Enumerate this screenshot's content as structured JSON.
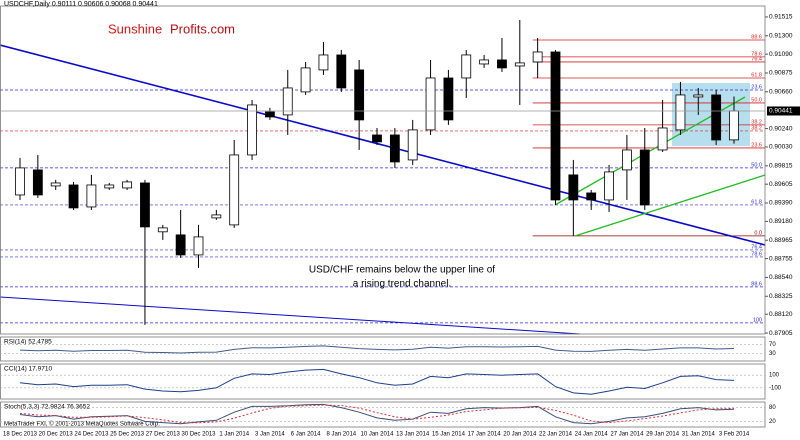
{
  "chart_data": [
    {
      "type": "candlestick",
      "header": "USDCHF,Daily  0.90111 0.90606 0.90068 0.90441",
      "logo": [
        "Sunshine",
        "Profits.com"
      ],
      "annotation": [
        "USD/CHF remains below the upper line of",
        "a rising trend channel."
      ],
      "categories": [
        "18 Dec 2013",
        null,
        "20 Dec 2013",
        null,
        "24 Dec 2013",
        null,
        "25 Dec 2013",
        null,
        "27 Dec 2013",
        null,
        "30 Dec 2013",
        null,
        "1 Jan 2014",
        null,
        "3 Jan 2014",
        null,
        "6 Jan 2014",
        null,
        "8 Jan 2014",
        null,
        "10 Jan 2014",
        null,
        "13 Jan 2014",
        null,
        "15 Jan 2014",
        null,
        "17 Jan 2014",
        null,
        "20 Jan 2014",
        null,
        "22 Jan 2014",
        null,
        "24 Jan 2014",
        null,
        "27 Jan 2014",
        null,
        "29 Jan 2014",
        null,
        "31 Jan 2014",
        null,
        "3 Feb 2014"
      ],
      "open": [
        0.89482,
        0.89768,
        0.89585,
        0.89596,
        0.89345,
        0.89562,
        0.89562,
        0.89619,
        0.89061,
        0.89026,
        0.88797,
        0.8922,
        0.8914,
        0.89939,
        0.9043,
        0.90396,
        0.90659,
        0.9091,
        0.91081,
        0.9091,
        0.90167,
        0.90167,
        0.89882,
        0.90225,
        0.90818,
        0.90818,
        0.90978,
        0.91024,
        0.90955,
        0.91001,
        0.91115,
        0.89711,
        0.89505,
        0.89425,
        0.89768,
        0.89996,
        0.89996,
        0.90225,
        0.90601,
        0.90624,
        0.90111
      ],
      "high": [
        0.89905,
        0.89939,
        0.89654,
        0.89631,
        0.89711,
        0.89619,
        0.89654,
        0.89654,
        0.8914,
        0.89311,
        0.8914,
        0.89311,
        0.9011,
        0.90567,
        0.90476,
        0.9091,
        0.91001,
        0.9123,
        0.91138,
        0.91024,
        0.90247,
        0.90247,
        0.90339,
        0.91024,
        0.9091,
        0.91138,
        0.91081,
        0.91275,
        0.91481,
        0.91275,
        0.91138,
        0.89882,
        0.89539,
        0.89825,
        0.90167,
        0.90247,
        0.90567,
        0.90773,
        0.90704,
        0.90681,
        0.90606
      ],
      "low": [
        0.89425,
        0.89448,
        0.89539,
        0.89311,
        0.89311,
        0.89539,
        0.89539,
        0.87998,
        0.88969,
        0.88763,
        0.88649,
        0.89197,
        0.89106,
        0.89882,
        0.90339,
        0.90167,
        0.90624,
        0.90853,
        0.90659,
        0.89996,
        0.90053,
        0.89791,
        0.89825,
        0.90167,
        0.90282,
        0.9059,
        0.90933,
        0.90887,
        0.9051,
        0.90818,
        0.89368,
        0.89015,
        0.89311,
        0.89288,
        0.89425,
        0.89311,
        0.89973,
        0.90167,
        0.90396,
        0.90053,
        0.90068
      ],
      "close": [
        0.89791,
        0.89482,
        0.89619,
        0.89334,
        0.89596,
        0.89596,
        0.89631,
        0.89117,
        0.89106,
        0.88797,
        0.89003,
        0.89254,
        0.89939,
        0.9051,
        0.90373,
        0.90704,
        0.90933,
        0.91081,
        0.90704,
        0.90339,
        0.90088,
        0.89859,
        0.90225,
        0.90818,
        0.90339,
        0.91081,
        0.91024,
        0.90933,
        0.9099,
        0.91115,
        0.89425,
        0.89425,
        0.89425,
        0.89745,
        0.89996,
        0.89368,
        0.90247,
        0.90624,
        0.90624,
        0.9011,
        0.90441
      ],
      "up_color": "#ffffff",
      "down_color": "#000000",
      "ylim": [
        0.87894,
        0.9164
      ],
      "yticks": [
        0.91515,
        {
          "value": 0.913,
          "label": "0.91300"
        },
        {
          "value": 0.9109,
          "label": "0.91090"
        },
        0.90875,
        {
          "value": 0.9066,
          "label": "0.90660"
        },
        {
          "value": 0.9024,
          "label": "0.90240"
        },
        {
          "value": 0.9003,
          "label": "0.90030"
        },
        0.89815,
        0.89605,
        {
          "value": 0.8939,
          "label": "0.89390"
        },
        {
          "value": 0.8918,
          "label": "0.89180"
        },
        0.88965,
        0.88755,
        {
          "value": 0.8854,
          "label": "0.88540"
        },
        0.88325,
        {
          "value": 0.8812,
          "label": "0.88120"
        },
        0.87905
      ],
      "last_price": 0.90441,
      "levels": [
        {
          "value": 0.90681,
          "label": "23.6",
          "color": "#2a2ad8"
        },
        {
          "value": 0.90213,
          "label": "38.2",
          "color": "#d02020"
        },
        {
          "value": 0.89791,
          "label": "50.0",
          "color": "#2a2ad8"
        },
        {
          "value": 0.89368,
          "label": "61.8",
          "color": "#2a2ad8"
        },
        {
          "value": 0.88854,
          "label": "76.4",
          "color": "#2a2ad8"
        },
        {
          "value": 0.88774,
          "label": "78.6",
          "color": "#2a2ad8"
        },
        {
          "value": 0.88432,
          "label": "88.6",
          "color": "#2a2ad8"
        },
        {
          "value": 0.88021,
          "label": "100",
          "color": "#2a2ad8"
        }
      ],
      "short_levels": [
        {
          "value": 0.91252,
          "label": "88.6",
          "color": "#d02020"
        },
        {
          "value": 0.91059,
          "label": "78.6",
          "color": "#d02020"
        },
        {
          "value": 0.91001,
          "label": "76.4",
          "color": "#d02020"
        },
        {
          "value": 0.90818,
          "label": "61.8",
          "color": "#d02020"
        },
        {
          "value": 0.90533,
          "label": "50.0",
          "color": "#d02020"
        },
        {
          "value": 0.90282,
          "label": "38.2",
          "color": "#d02020"
        },
        {
          "value": 0.90019,
          "label": "23.6",
          "color": "#d02020"
        },
        {
          "value": 0.89015,
          "label": "0.0",
          "color": "#8b0000"
        }
      ]
    },
    {
      "type": "line",
      "title": "RSI(14) 52.4785",
      "ylim": [
        0,
        100
      ],
      "yticks": [
        70,
        30
      ],
      "series": [
        {
          "color": "#3d5a8a",
          "style": "solid",
          "values": [
            45,
            42,
            44,
            40,
            43,
            43,
            44,
            35,
            34,
            32,
            35,
            36,
            48,
            56,
            55,
            58,
            62,
            64,
            58,
            52,
            48,
            46,
            49,
            58,
            54,
            60,
            60,
            59,
            60,
            62,
            45,
            40,
            39,
            44,
            48,
            44,
            50,
            55,
            55,
            50,
            52.4785
          ]
        }
      ]
    },
    {
      "type": "line",
      "title": "CCI(14) 17.9710",
      "ylim": [
        -260,
        260
      ],
      "yticks": [
        100,
        -100
      ],
      "series": [
        {
          "color": "#1c3f8c",
          "style": "solid",
          "values": [
            -20,
            -50,
            -40,
            -80,
            -60,
            -60,
            -50,
            -120,
            -150,
            -160,
            -140,
            -100,
            50,
            120,
            110,
            150,
            180,
            190,
            120,
            60,
            -20,
            -60,
            -40,
            80,
            60,
            120,
            110,
            100,
            110,
            120,
            -80,
            -180,
            -200,
            -150,
            -90,
            -110,
            -20,
            80,
            90,
            30,
            17.971
          ]
        }
      ]
    },
    {
      "type": "line",
      "title": "Stoch(5,3,3) 72.9824 76.3652",
      "ylim": [
        0,
        100
      ],
      "yticks": [
        80,
        20
      ],
      "series": [
        {
          "color": "#3a4f7a",
          "style": "solid",
          "values": [
            50,
            40,
            45,
            30,
            40,
            42,
            45,
            20,
            15,
            10,
            18,
            25,
            60,
            85,
            85,
            88,
            92,
            94,
            80,
            60,
            35,
            25,
            30,
            60,
            55,
            75,
            80,
            78,
            80,
            85,
            40,
            15,
            10,
            20,
            35,
            40,
            55,
            75,
            80,
            70,
            72.9824
          ]
        },
        {
          "color": "#e03030",
          "style": "dotted",
          "values": [
            55,
            48,
            45,
            38,
            38,
            40,
            44,
            36,
            27,
            15,
            14,
            18,
            34,
            57,
            77,
            86,
            88,
            91,
            89,
            78,
            58,
            40,
            30,
            38,
            48,
            63,
            70,
            78,
            79,
            81,
            68,
            47,
            22,
            15,
            22,
            32,
            43,
            57,
            70,
            75,
            76.3652
          ]
        }
      ]
    }
  ],
  "footer": "MetaTrader FXI, © 2001-2013 MetaQuotes Software Corp."
}
